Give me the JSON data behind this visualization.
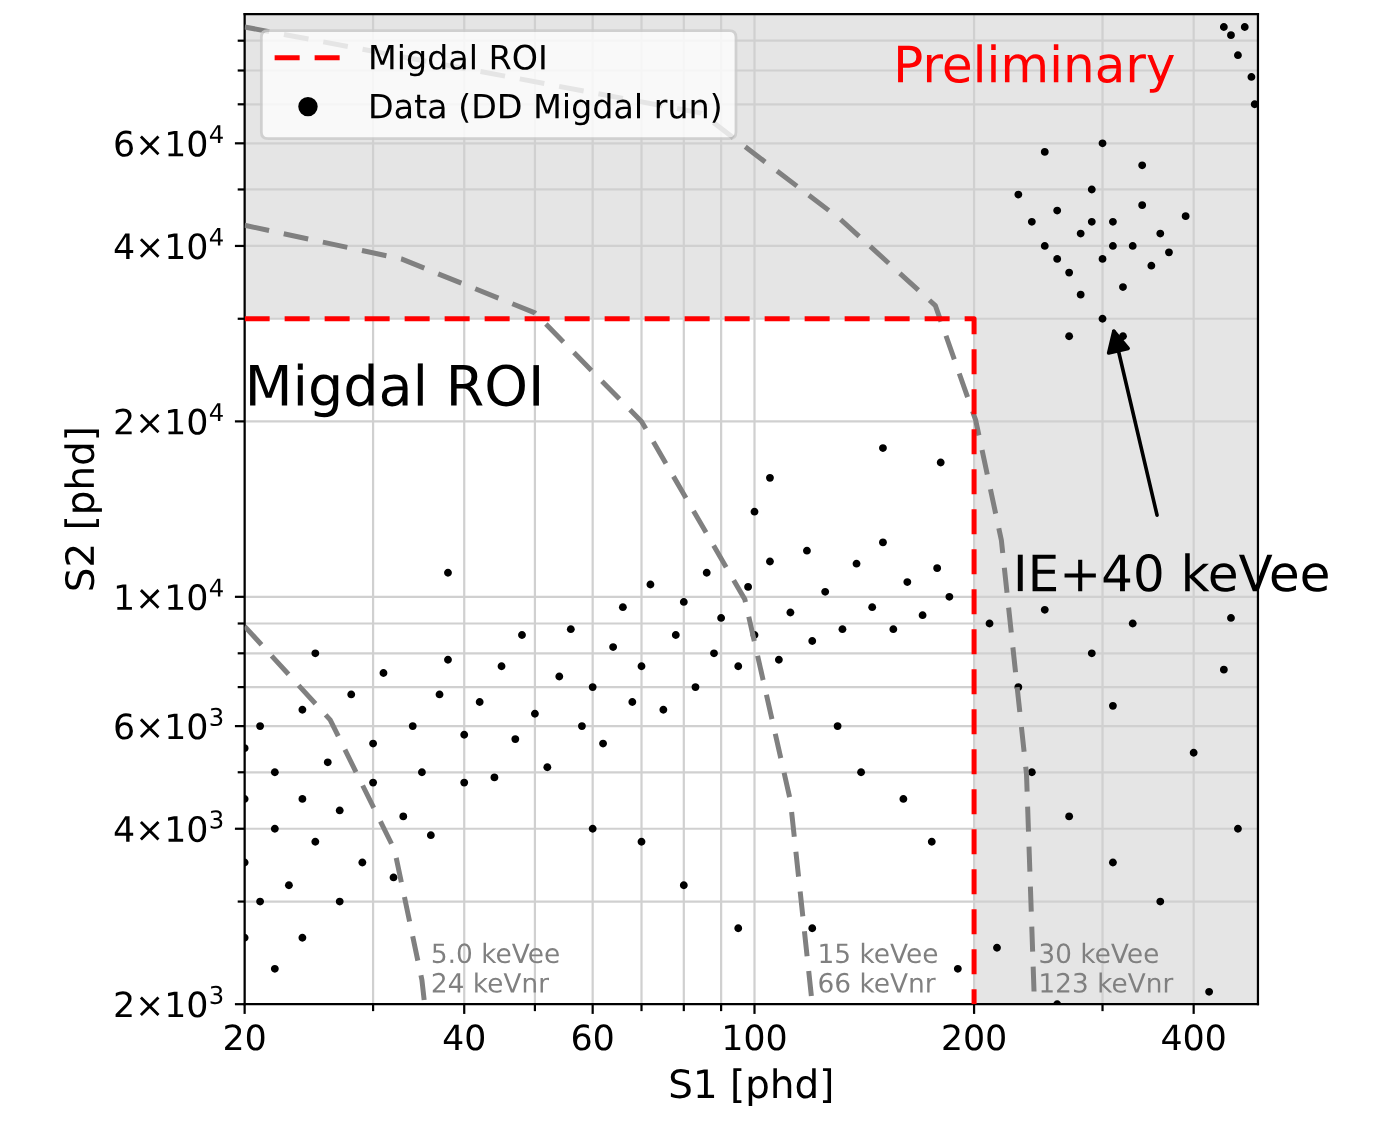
{
  "chart_data": {
    "type": "scatter",
    "xlabel": "S1 [phd]",
    "ylabel": "S2 [phd]",
    "log": "xy",
    "xlim": [
      20,
      490
    ],
    "ylim": [
      2000,
      100000
    ],
    "xticks": [
      20,
      {
        "value": 30,
        "label": null
      },
      40,
      {
        "value": 50,
        "label": null
      },
      60,
      {
        "value": 70,
        "label": null
      },
      {
        "value": 80,
        "label": null
      },
      {
        "value": 90,
        "label": null
      },
      100,
      200,
      {
        "value": 300,
        "label": null
      },
      400
    ],
    "yticks": [
      {
        "value": 2000,
        "label": "2×10$^{3}$"
      },
      {
        "value": 3000,
        "label": null
      },
      {
        "value": 4000,
        "label": "4×10$^{3}$"
      },
      {
        "value": 5000,
        "label": null
      },
      {
        "value": 6000,
        "label": "6×10$^{3}$"
      },
      {
        "value": 7000,
        "label": null
      },
      {
        "value": 8000,
        "label": null
      },
      {
        "value": 9000,
        "label": null
      },
      {
        "value": 10000,
        "label": "1×10$^{4}$"
      },
      {
        "value": 20000,
        "label": "2×10$^{4}$"
      },
      {
        "value": 30000,
        "label": null
      },
      {
        "value": 40000,
        "label": "4×10$^{4}$"
      },
      {
        "value": 50000,
        "label": null
      },
      {
        "value": 60000,
        "label": "6×10$^{4}$"
      },
      {
        "value": 70000,
        "label": null
      },
      {
        "value": 80000,
        "label": null
      },
      {
        "value": 90000,
        "label": null
      }
    ],
    "grid": true,
    "legend": "top left",
    "bands": [
      {
        "axis": "x",
        "from": 200,
        "to": 490,
        "color": "#e5e5e5"
      },
      {
        "axis": "y",
        "from": 30000,
        "to": 100000,
        "color": "#e5e5e5"
      }
    ],
    "series": [
      {
        "type": "line",
        "color": "#808080",
        "line_style": "dashed",
        "x": [
          20,
          26.2,
          32.1,
          35.0,
          35.3
        ],
        "values": [
          8900,
          6150,
          3680,
          2200,
          2000
        ]
      },
      {
        "type": "line",
        "color": "#808080",
        "line_style": "dashed",
        "x": [
          20,
          32.8,
          50,
          70,
          97,
          112,
          120
        ],
        "values": [
          43400,
          38000,
          30700,
          20000,
          9900,
          4470,
          2000
        ]
      },
      {
        "type": "line",
        "color": "#808080",
        "line_style": "dashed",
        "x": [
          20,
          84.5,
          131,
          177,
          201,
          218,
          236,
          242
        ],
        "values": [
          95000,
          67600,
          44500,
          31600,
          20100,
          12500,
          4960,
          2000
        ]
      },
      {
        "name": "Migdal ROI",
        "type": "line",
        "color": "#ff0000",
        "line_style": "dashed",
        "x": [
          20,
          200,
          200
        ],
        "values": [
          30000,
          30000,
          2000
        ]
      },
      {
        "name": "Data (DD Migdal run)",
        "color": "#000000",
        "marker": "circle",
        "x": [
          20,
          20,
          20,
          20,
          21,
          21,
          22,
          22,
          22,
          23,
          24,
          24,
          24,
          25,
          26,
          27,
          27,
          28,
          29,
          30,
          30,
          31,
          32,
          33,
          34,
          35,
          36,
          37,
          38,
          40,
          40,
          42,
          44,
          45,
          47,
          48,
          50,
          52,
          54,
          56,
          58,
          60,
          62,
          64,
          66,
          68,
          70,
          72,
          75,
          78,
          80,
          83,
          86,
          88,
          90,
          95,
          98,
          100,
          105,
          108,
          112,
          118,
          120,
          125,
          132,
          138,
          145,
          150,
          155,
          162,
          170,
          178,
          185,
          38,
          25,
          60,
          70,
          80,
          95,
          130,
          140,
          160,
          175,
          190,
          120,
          100,
          150,
          180,
          105,
          210,
          230,
          250,
          290,
          310,
          330,
          240,
          270,
          310,
          360,
          400,
          440,
          450,
          460,
          420,
          215,
          260,
          250,
          260,
          270,
          280,
          290,
          300,
          310,
          320,
          330,
          340,
          350,
          360,
          280,
          300,
          320,
          240,
          370,
          260,
          290,
          310,
          230,
          390,
          270,
          340,
          300,
          250,
          440,
          460,
          480,
          470,
          450,
          485
        ],
        "values": [
          2600,
          3500,
          4500,
          5500,
          3000,
          6000,
          2300,
          4000,
          5000,
          3200,
          2600,
          4500,
          6400,
          3800,
          5200,
          3000,
          4300,
          6800,
          3500,
          4800,
          5600,
          7400,
          3300,
          4200,
          6000,
          5000,
          3900,
          6800,
          7800,
          4800,
          5800,
          6600,
          4900,
          7600,
          5700,
          8600,
          6300,
          5100,
          7300,
          8800,
          6000,
          7000,
          5600,
          8200,
          9600,
          6600,
          7600,
          10500,
          6400,
          8600,
          9800,
          7000,
          11000,
          8000,
          9200,
          7600,
          10400,
          8600,
          11500,
          7800,
          9400,
          12000,
          8400,
          10200,
          8800,
          11400,
          9600,
          12400,
          8800,
          10600,
          9300,
          11200,
          10000,
          11000,
          8000,
          4000,
          3800,
          3200,
          2700,
          6000,
          5000,
          4500,
          3800,
          2300,
          2700,
          14000,
          18000,
          17000,
          16000,
          9000,
          7000,
          9500,
          8000,
          6500,
          9000,
          5000,
          4200,
          3500,
          3000,
          5400,
          7500,
          9200,
          4000,
          2100,
          2500,
          2000,
          40000,
          46000,
          36000,
          42000,
          50000,
          38000,
          44000,
          34000,
          40000,
          47000,
          37000,
          42000,
          33000,
          30000,
          28000,
          44000,
          39000,
          38000,
          44000,
          40000,
          49000,
          45000,
          28000,
          55000,
          60000,
          58000,
          95000,
          85000,
          78000,
          95000,
          92000,
          70000
        ]
      }
    ],
    "annotations": [
      "Migdal ROI",
      "Preliminary",
      {
        "text": "IE+40 keVee",
        "x": 310,
        "y": 29000
      },
      {
        "text": "5.0 keVee\n24 keVnr",
        "x": 36,
        "y": 2050
      },
      {
        "text": "15 keVee\n66 keVnr",
        "x": 122,
        "y": 2050
      },
      {
        "text": "30 keVee\n123 keVnr",
        "x": 245,
        "y": 2050
      }
    ]
  }
}
